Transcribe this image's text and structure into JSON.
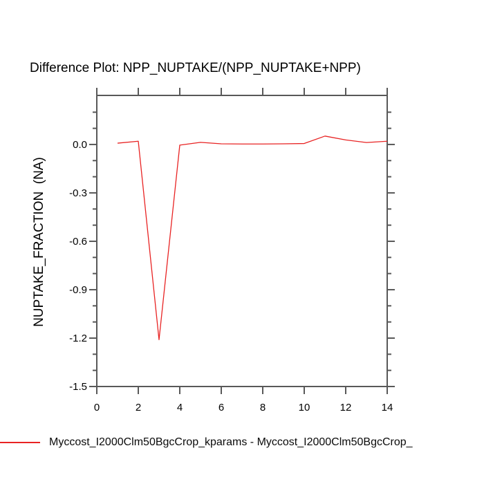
{
  "title": "Difference Plot: NPP_NUPTAKE/(NPP_NUPTAKE+NPP)",
  "legend": {
    "label": "Myccost_I2000Clm50BgcCrop_kparams - Myccost_I2000Clm50BgcCrop_"
  },
  "chart_data": {
    "type": "line",
    "title": "Difference Plot: NPP_NUPTAKE/(NPP_NUPTAKE+NPP)",
    "xlabel": "",
    "ylabel": "NUPTAKE_FRACTION  (NA)",
    "x": [
      1,
      2,
      3,
      4,
      5,
      6,
      7,
      8,
      9,
      10,
      11,
      12,
      13,
      14
    ],
    "series": [
      {
        "name": "Myccost_I2000Clm50BgcCrop_kparams - Myccost_I2000Clm50BgcCrop_",
        "values": [
          0.008,
          0.02,
          -1.21,
          -0.004,
          0.013,
          0.004,
          0.003,
          0.003,
          0.004,
          0.006,
          0.052,
          0.028,
          0.012,
          0.02
        ]
      }
    ],
    "xlim": [
      0,
      14
    ],
    "ylim": [
      -1.5,
      0.304
    ],
    "x_ticks": {
      "values": [
        0,
        2,
        4,
        6,
        8,
        10,
        12,
        14
      ],
      "labels": [
        "0",
        "2",
        "4",
        "6",
        "8",
        "10",
        "12",
        "14"
      ]
    },
    "y_ticks": {
      "values": [
        0.0,
        -0.3,
        -0.6,
        -0.9,
        -1.2,
        -1.5
      ],
      "labels": [
        "0.0",
        "-0.3",
        "-0.6",
        "-0.9",
        "-1.2",
        "-1.5"
      ]
    },
    "y_minor_ticks": [
      0.2,
      0.1,
      -0.1,
      -0.2,
      -0.4,
      -0.5,
      -0.7,
      -0.8,
      -1.0,
      -1.1,
      -1.3,
      -1.4
    ],
    "grid": false,
    "legend_position": "bottom-left",
    "axis_color": "#585858",
    "line_color": "#e82222",
    "text_color": "#000000"
  }
}
